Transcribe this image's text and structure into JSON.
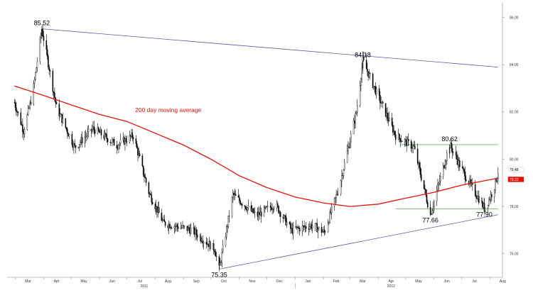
{
  "chart_data": {
    "type": "line",
    "subtype": "ohlc-candlestick",
    "title": "",
    "xlabel": "",
    "ylabel": "",
    "x_ticks": [
      "Mar",
      "Apr",
      "May",
      "Jun",
      "Jul",
      "Aug",
      "Sep",
      "Oct",
      "Nov",
      "Dec",
      "Jan",
      "Feb",
      "Mar",
      "Apr",
      "May",
      "Jun",
      "Jul",
      "Aug"
    ],
    "year_labels": [
      "2011",
      "2012"
    ],
    "y_ticks": [
      "76.00",
      "78.00",
      "80.00",
      "82.00",
      "84.00",
      "86.00"
    ],
    "ylim": [
      75.0,
      86.5
    ],
    "grid": false,
    "price_key_points": [
      {
        "x": "2011-02-28",
        "y": 82.4
      },
      {
        "x": "2011-03-10",
        "y": 81.2
      },
      {
        "x": "2011-03-20",
        "y": 82.8
      },
      {
        "x": "2011-03-30",
        "y": 85.52
      },
      {
        "x": "2011-04-15",
        "y": 82.2
      },
      {
        "x": "2011-05-05",
        "y": 80.5
      },
      {
        "x": "2011-05-25",
        "y": 81.3
      },
      {
        "x": "2011-06-20",
        "y": 80.6
      },
      {
        "x": "2011-07-08",
        "y": 81.0
      },
      {
        "x": "2011-07-25",
        "y": 78.6
      },
      {
        "x": "2011-08-10",
        "y": 77.3
      },
      {
        "x": "2011-09-10",
        "y": 77.0
      },
      {
        "x": "2011-10-05",
        "y": 76.2
      },
      {
        "x": "2011-10-10",
        "y": 75.35
      },
      {
        "x": "2011-10-25",
        "y": 78.5
      },
      {
        "x": "2011-11-20",
        "y": 77.6
      },
      {
        "x": "2011-12-10",
        "y": 78.1
      },
      {
        "x": "2011-12-28",
        "y": 77.0
      },
      {
        "x": "2012-01-20",
        "y": 77.2
      },
      {
        "x": "2012-02-02",
        "y": 76.9
      },
      {
        "x": "2012-02-18",
        "y": 78.8
      },
      {
        "x": "2012-03-08",
        "y": 82.0
      },
      {
        "x": "2012-03-15",
        "y": 84.18
      },
      {
        "x": "2012-03-28",
        "y": 83.0
      },
      {
        "x": "2012-04-20",
        "y": 81.0
      },
      {
        "x": "2012-05-10",
        "y": 80.5
      },
      {
        "x": "2012-05-28",
        "y": 77.66
      },
      {
        "x": "2012-06-10",
        "y": 79.5
      },
      {
        "x": "2012-06-18",
        "y": 80.62
      },
      {
        "x": "2012-07-05",
        "y": 79.3
      },
      {
        "x": "2012-07-22",
        "y": 78.2
      },
      {
        "x": "2012-07-26",
        "y": 77.9
      },
      {
        "x": "2012-08-05",
        "y": 78.7
      },
      {
        "x": "2012-08-10",
        "y": 79.48
      }
    ],
    "moving_average": {
      "name": "200 day moving average",
      "points": [
        {
          "x": "2011-02-28",
          "y": 83.1
        },
        {
          "x": "2011-04-01",
          "y": 82.7
        },
        {
          "x": "2011-05-01",
          "y": 82.3
        },
        {
          "x": "2011-06-01",
          "y": 81.9
        },
        {
          "x": "2011-07-01",
          "y": 81.6
        },
        {
          "x": "2011-08-01",
          "y": 81.1
        },
        {
          "x": "2011-09-01",
          "y": 80.6
        },
        {
          "x": "2011-10-01",
          "y": 80.0
        },
        {
          "x": "2011-11-01",
          "y": 79.3
        },
        {
          "x": "2011-12-01",
          "y": 78.8
        },
        {
          "x": "2012-01-01",
          "y": 78.4
        },
        {
          "x": "2012-02-01",
          "y": 78.15
        },
        {
          "x": "2012-03-01",
          "y": 78.0
        },
        {
          "x": "2012-04-01",
          "y": 78.1
        },
        {
          "x": "2012-05-01",
          "y": 78.35
        },
        {
          "x": "2012-06-01",
          "y": 78.6
        },
        {
          "x": "2012-07-01",
          "y": 78.9
        },
        {
          "x": "2012-08-10",
          "y": 79.2
        }
      ]
    },
    "trendlines": [
      {
        "name": "upper",
        "from": {
          "x": "2011-03-30",
          "y": 85.52
        },
        "to": {
          "x": "2012-08-10",
          "y": 83.9
        }
      },
      {
        "name": "lower",
        "from": {
          "x": "2011-10-10",
          "y": 75.35
        },
        "to": {
          "x": "2012-08-10",
          "y": 77.65
        }
      }
    ],
    "horizontal_lines": [
      {
        "name": "resistance",
        "y": 80.62,
        "from": "2012-04-25",
        "to": "2012-08-10"
      },
      {
        "name": "support",
        "y": 77.9,
        "from": "2012-04-20",
        "to": "2012-08-10"
      }
    ],
    "annotations": [
      {
        "label": "85.52",
        "x": "2011-03-30",
        "y": 85.52,
        "side": "top"
      },
      {
        "label": "84.18",
        "x": "2012-03-15",
        "y": 84.18,
        "side": "top"
      },
      {
        "label": "80.62",
        "x": "2012-06-18",
        "y": 80.62,
        "side": "top"
      },
      {
        "label": "75.35",
        "x": "2011-10-10",
        "y": 75.35,
        "side": "bottom"
      },
      {
        "label": "77.66",
        "x": "2012-05-28",
        "y": 77.66,
        "side": "bottom"
      },
      {
        "label": "77.90",
        "x": "2012-07-26",
        "y": 77.9,
        "side": "bottom"
      },
      {
        "label": "200 day moving average",
        "x": "2011-07-10",
        "y": 82.0,
        "side": "right"
      }
    ],
    "last_value_badges": [
      {
        "label": "79.48",
        "y": 79.48,
        "bg": "#ffffff",
        "fg": "#000000"
      },
      {
        "label": "79.22",
        "y": 79.22,
        "bg": "#e3120b",
        "fg": "#ffffff"
      }
    ],
    "colors": {
      "price": "#000000",
      "moving_average": "#e3120b",
      "trendline": "#5a5aa8",
      "horizontal_line": "#7ab87a",
      "axis": "#888888"
    }
  }
}
